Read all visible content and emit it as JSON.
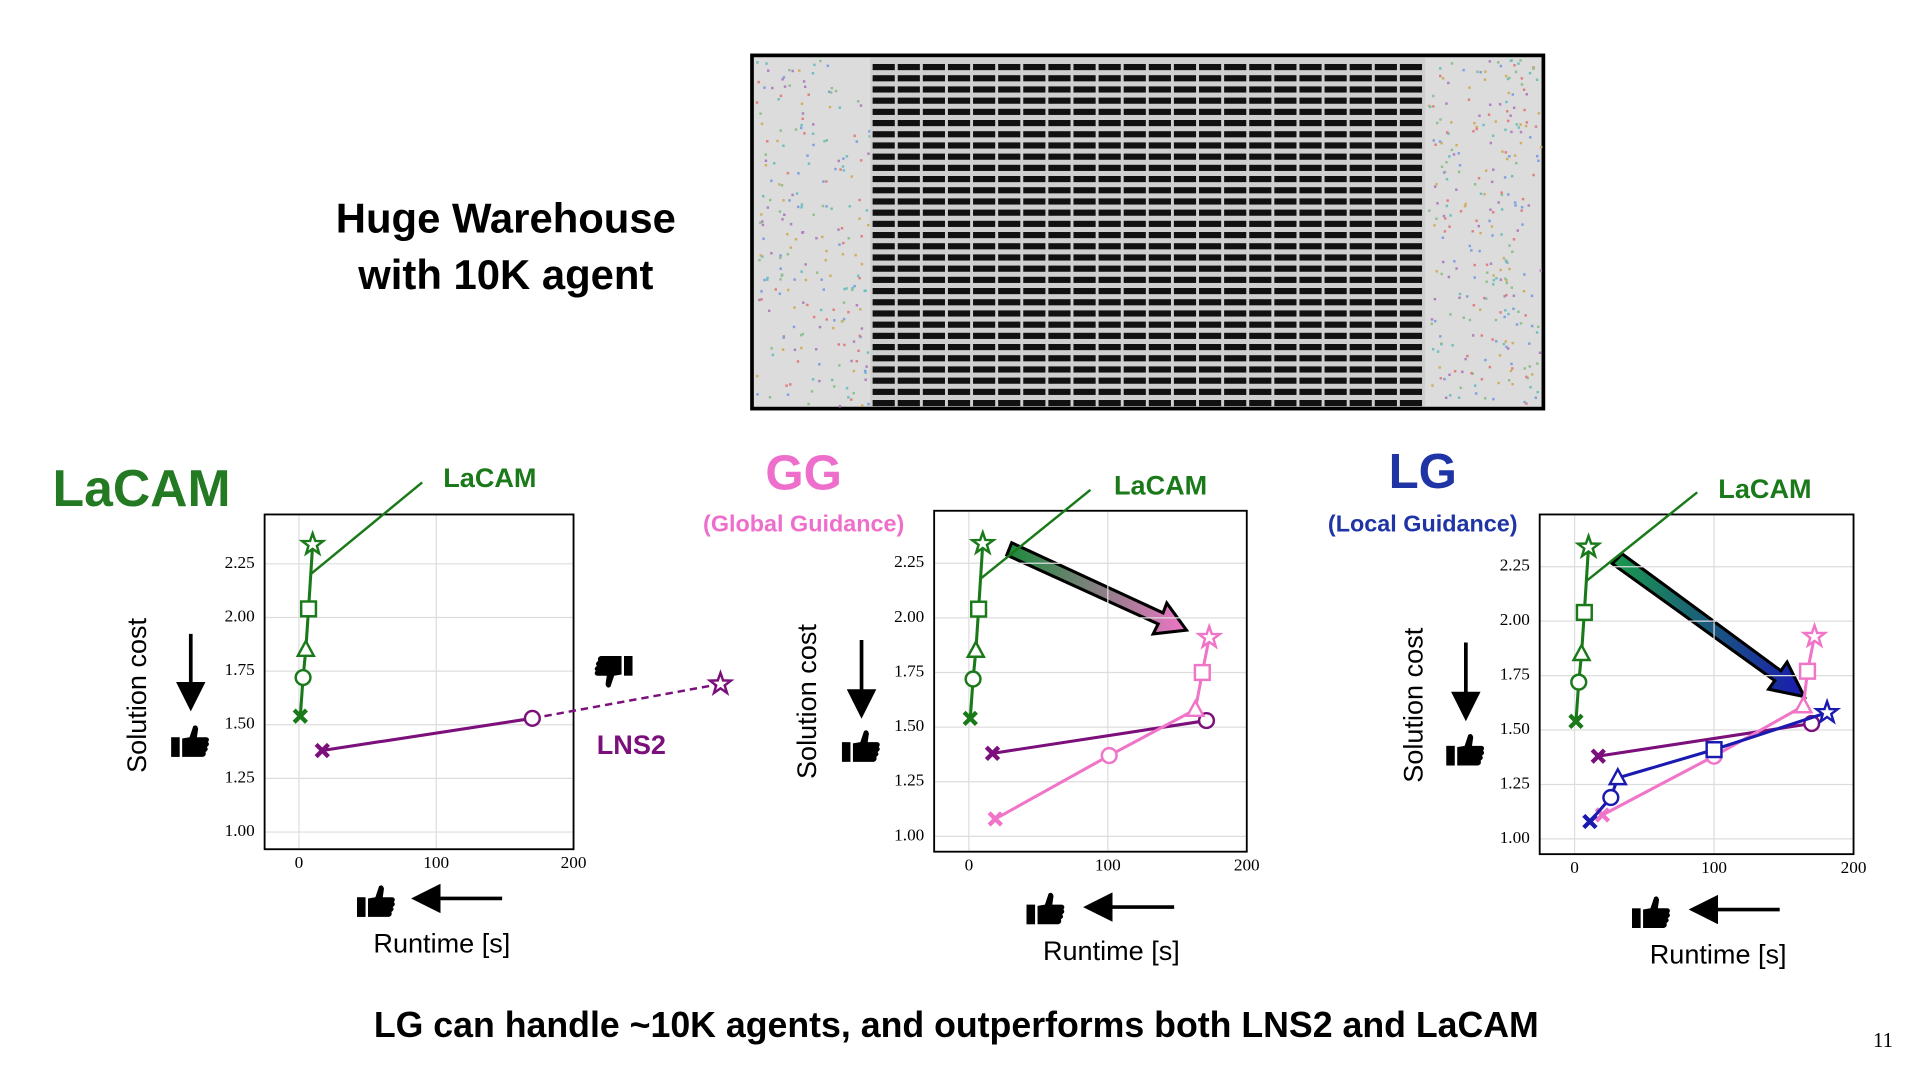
{
  "header": {
    "title_lines": [
      "Huge Warehouse",
      "with 10K agent"
    ]
  },
  "chart_data": [
    {
      "type": "line",
      "title": "LaCAM",
      "title_color": "#237a23",
      "x_label": "Runtime [s]",
      "y_label": "Solution cost",
      "xlim": [
        -25,
        200
      ],
      "ylim": [
        0.92,
        2.48
      ],
      "xticks": [
        0,
        100,
        200
      ],
      "yticks": [
        {
          "value": 1,
          "label": "1.00"
        },
        1.25,
        {
          "value": 1.5,
          "label": "1.50"
        },
        1.75,
        {
          "value": 2,
          "label": "2.00"
        },
        2.25
      ],
      "grid": true,
      "series": [
        {
          "name": "LaCAM",
          "color": "#1a7a1a",
          "x": [
            1,
            3,
            5,
            7,
            10
          ],
          "values": [
            1.54,
            1.72,
            1.85,
            2.04,
            2.34
          ],
          "markers": [
            "cross",
            "circle",
            "triangle",
            "square",
            "star"
          ]
        },
        {
          "name": "LNS2",
          "color": "#7b0f7b",
          "x": [
            17,
            170,
            307
          ],
          "values": [
            1.38,
            1.53,
            1.69
          ],
          "markers": [
            "cross",
            "circle",
            "star"
          ]
        }
      ]
    },
    {
      "type": "line",
      "title": "GG",
      "subtitle": "(Global Guidance)",
      "title_color": "#ee6ecb",
      "x_label": "Runtime [s]",
      "y_label": "Solution cost",
      "xlim": [
        -25,
        200
      ],
      "ylim": [
        0.93,
        2.49
      ],
      "xticks": [
        0,
        100,
        200
      ],
      "yticks": [
        {
          "value": 1,
          "label": "1.00"
        },
        1.25,
        {
          "value": 1.5,
          "label": "1.50"
        },
        1.75,
        {
          "value": 2,
          "label": "2.00"
        },
        2.25
      ],
      "grid": true,
      "series": [
        {
          "name": "LaCAM",
          "color": "#1a7a1a",
          "x": [
            1,
            3,
            5,
            7,
            10
          ],
          "values": [
            1.54,
            1.72,
            1.85,
            2.04,
            2.34
          ],
          "markers": [
            "cross",
            "circle",
            "triangle",
            "square",
            "star"
          ]
        },
        {
          "color": "#7b0f7b",
          "x": [
            17,
            171
          ],
          "values": [
            1.38,
            1.53
          ],
          "markers": [
            "cross",
            "circle"
          ]
        },
        {
          "color": "#f075c8",
          "x": [
            19,
            101,
            163,
            168,
            173
          ],
          "values": [
            1.08,
            1.37,
            1.58,
            1.75,
            1.91
          ],
          "markers": [
            "cross",
            "circle",
            "triangle",
            "square",
            "star"
          ]
        }
      ]
    },
    {
      "type": "line",
      "title": "LG",
      "subtitle": "(Local Guidance)",
      "title_color": "#1f35a5",
      "x_label": "Runtime [s]",
      "y_label": "Solution cost",
      "xlim": [
        -25,
        200
      ],
      "ylim": [
        0.93,
        2.49
      ],
      "xticks": [
        0,
        100,
        200
      ],
      "yticks": [
        {
          "value": 1,
          "label": "1.00"
        },
        1.25,
        {
          "value": 1.5,
          "label": "1.50"
        },
        1.75,
        {
          "value": 2,
          "label": "2.00"
        },
        2.25
      ],
      "grid": true,
      "series": [
        {
          "name": "LaCAM",
          "color": "#1a7a1a",
          "x": [
            1,
            3,
            5,
            7,
            10
          ],
          "values": [
            1.54,
            1.72,
            1.85,
            2.04,
            2.34
          ],
          "markers": [
            "cross",
            "circle",
            "triangle",
            "square",
            "star"
          ]
        },
        {
          "color": "#7b0f7b",
          "x": [
            17,
            170
          ],
          "values": [
            1.38,
            1.53
          ],
          "markers": [
            "cross",
            "circle"
          ]
        },
        {
          "color": "#f075c8",
          "x": [
            20,
            100,
            164,
            167,
            172
          ],
          "values": [
            1.11,
            1.38,
            1.61,
            1.77,
            1.93
          ],
          "markers": [
            "cross",
            "circle",
            "triangle",
            "square",
            "star"
          ]
        },
        {
          "color": "#1a1ab0",
          "x": [
            11,
            26,
            31,
            100,
            181
          ],
          "values": [
            1.08,
            1.19,
            1.28,
            1.41,
            1.58
          ],
          "markers": [
            "cross",
            "circle",
            "triangle",
            "square",
            "star"
          ]
        }
      ]
    }
  ],
  "caption": "LG can handle ~10K agents, and outperforms both LNS2 and LaCAM",
  "page_number": 11
}
